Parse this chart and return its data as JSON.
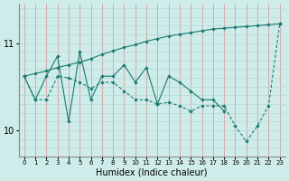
{
  "xlabel": "Humidex (Indice chaleur)",
  "bg_color": "#ceecea",
  "line_color": "#1a7a6e",
  "grid_color_v": "#d4a0a0",
  "grid_color_h": "#b8d8d5",
  "xlim": [
    -0.5,
    23.5
  ],
  "ylim": [
    9.7,
    11.45
  ],
  "yticks": [
    10,
    11
  ],
  "series": [
    {
      "x": [
        0,
        1,
        2,
        3,
        4,
        5,
        6,
        7,
        8,
        9,
        10,
        11,
        12,
        13,
        14,
        15,
        16,
        17,
        18,
        19,
        20,
        21,
        22,
        23
      ],
      "y": [
        10.62,
        10.65,
        10.68,
        10.72,
        10.75,
        10.78,
        10.82,
        10.87,
        10.91,
        10.95,
        10.98,
        11.02,
        11.05,
        11.08,
        11.1,
        11.12,
        11.14,
        11.16,
        11.17,
        11.18,
        11.19,
        11.2,
        11.21,
        11.22
      ],
      "style": "solid",
      "marker": true
    },
    {
      "x": [
        0,
        1,
        2,
        3,
        4,
        5,
        6,
        7,
        8,
        9,
        10,
        11,
        12,
        13,
        14,
        15,
        16,
        17,
        18
      ],
      "y": [
        10.62,
        10.35,
        10.62,
        10.85,
        10.1,
        10.9,
        10.35,
        10.62,
        10.62,
        10.75,
        10.55,
        10.72,
        10.3,
        10.62,
        10.55,
        10.45,
        10.35,
        10.35,
        10.22
      ],
      "style": "solid",
      "marker": true
    },
    {
      "x": [
        0,
        1,
        2,
        3,
        4,
        5,
        6,
        7,
        8,
        9,
        10,
        11,
        12,
        13,
        14,
        15,
        16,
        17,
        18,
        19,
        20,
        21,
        22,
        23
      ],
      "y": [
        10.62,
        10.35,
        10.35,
        10.62,
        10.6,
        10.55,
        10.48,
        10.55,
        10.55,
        10.45,
        10.35,
        10.35,
        10.3,
        10.32,
        10.28,
        10.22,
        10.28,
        10.28,
        10.28,
        10.05,
        9.87,
        10.05,
        10.28,
        11.22
      ],
      "style": "dashed",
      "marker": true
    }
  ]
}
